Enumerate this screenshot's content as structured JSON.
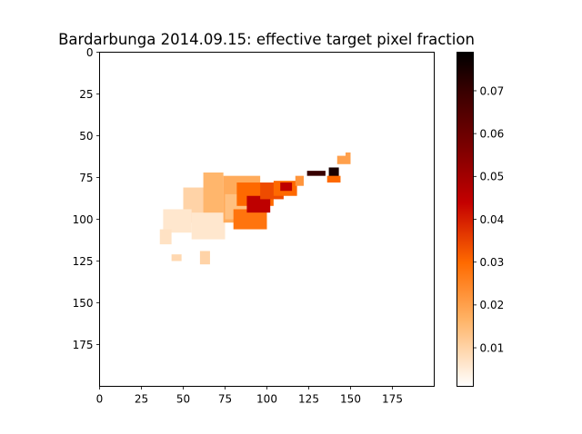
{
  "chart_data": {
    "type": "heatmap",
    "title": "Bardarbunga 2014.09.15: effective target pixel fraction",
    "xlabel": "",
    "ylabel": "",
    "xlim": [
      0,
      200
    ],
    "ylim": [
      200,
      0
    ],
    "x_ticks": [
      0,
      25,
      50,
      75,
      100,
      125,
      150,
      175
    ],
    "x_tick_labels": [
      "0",
      "25",
      "50",
      "75",
      "100",
      "125",
      "150",
      "175"
    ],
    "y_ticks": [
      0,
      25,
      50,
      75,
      100,
      125,
      150,
      175
    ],
    "y_tick_labels": [
      "0",
      "25",
      "50",
      "75",
      "100",
      "125",
      "150",
      "175"
    ],
    "colormap": "gist_heat_r",
    "colorbar": {
      "min": 0.001,
      "max": 0.079,
      "ticks": [
        0.01,
        0.02,
        0.03,
        0.04,
        0.05,
        0.06,
        0.07
      ],
      "tick_labels": [
        "0.01",
        "0.02",
        "0.03",
        "0.04",
        "0.05",
        "0.06",
        "0.07"
      ],
      "placement": "right"
    },
    "grid": false,
    "background_color": "#ffffff",
    "regions": [
      {
        "x": [
          50,
          74
        ],
        "y": [
          81,
          102
        ],
        "value": 0.01
      },
      {
        "x": [
          38,
          55
        ],
        "y": [
          94,
          108
        ],
        "value": 0.006
      },
      {
        "x": [
          55,
          75
        ],
        "y": [
          96,
          112
        ],
        "value": 0.006
      },
      {
        "x": [
          36,
          43
        ],
        "y": [
          106,
          115
        ],
        "value": 0.007
      },
      {
        "x": [
          60,
          66
        ],
        "y": [
          119,
          127
        ],
        "value": 0.01
      },
      {
        "x": [
          43,
          49
        ],
        "y": [
          121,
          125
        ],
        "value": 0.009
      },
      {
        "x": [
          62,
          74
        ],
        "y": [
          72,
          96
        ],
        "value": 0.016
      },
      {
        "x": [
          74,
          96
        ],
        "y": [
          74,
          102
        ],
        "value": 0.018
      },
      {
        "x": [
          75,
          92
        ],
        "y": [
          85,
          100
        ],
        "value": 0.014
      },
      {
        "x": [
          82,
          104
        ],
        "y": [
          78,
          92
        ],
        "value": 0.03
      },
      {
        "x": [
          80,
          100
        ],
        "y": [
          94,
          106
        ],
        "value": 0.028
      },
      {
        "x": [
          88,
          102
        ],
        "y": [
          86,
          96
        ],
        "value": 0.045
      },
      {
        "x": [
          96,
          110
        ],
        "y": [
          78,
          88
        ],
        "value": 0.034
      },
      {
        "x": [
          104,
          118
        ],
        "y": [
          77,
          86
        ],
        "value": 0.03
      },
      {
        "x": [
          108,
          115
        ],
        "y": [
          78,
          83
        ],
        "value": 0.045
      },
      {
        "x": [
          117,
          122
        ],
        "y": [
          74,
          80
        ],
        "value": 0.022
      },
      {
        "x": [
          124,
          135
        ],
        "y": [
          71,
          74
        ],
        "value": 0.07
      },
      {
        "x": [
          137,
          143
        ],
        "y": [
          69,
          76
        ],
        "value": 0.075
      },
      {
        "x": [
          136,
          144
        ],
        "y": [
          74,
          78
        ],
        "value": 0.03
      },
      {
        "x": [
          142,
          150
        ],
        "y": [
          62,
          67
        ],
        "value": 0.02
      },
      {
        "x": [
          147,
          150
        ],
        "y": [
          60,
          64
        ],
        "value": 0.02
      }
    ]
  }
}
